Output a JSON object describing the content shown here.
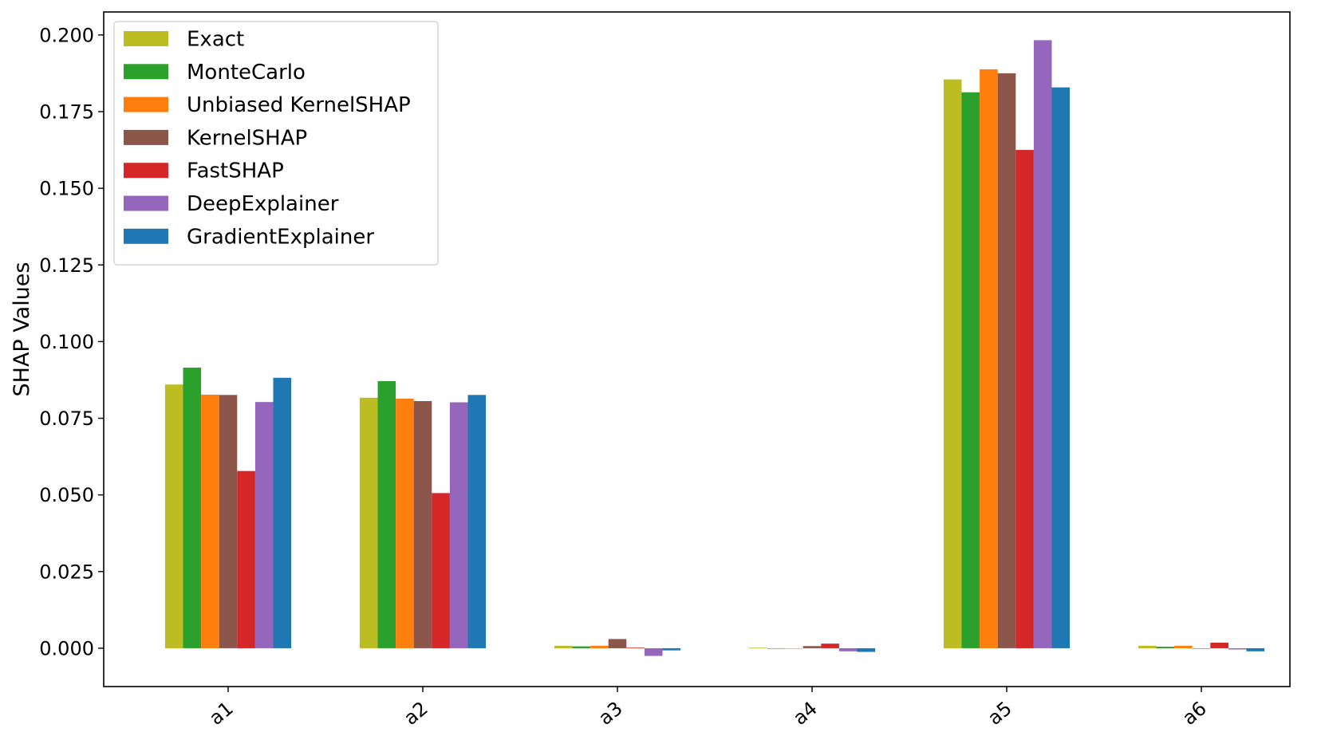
{
  "chart_data": {
    "type": "bar",
    "title": "",
    "xlabel": "",
    "ylabel": "SHAP Values",
    "categories": [
      "a1",
      "a2",
      "a3",
      "a4",
      "a5",
      "a6"
    ],
    "ylim": [
      -0.0125,
      0.2075
    ],
    "yticks": [
      0.0,
      0.025,
      0.05,
      0.075,
      0.1,
      0.125,
      0.15,
      0.175,
      0.2
    ],
    "ytick_labels": [
      "0.000",
      "0.025",
      "0.050",
      "0.075",
      "0.100",
      "0.125",
      "0.150",
      "0.175",
      "0.200"
    ],
    "xtick_rotation": "rotated ~40°",
    "grid": false,
    "legend_position": "upper-left",
    "series": [
      {
        "name": "Exact",
        "color": "#bcbd22",
        "values": [
          0.086,
          0.0817,
          0.0008,
          0.0002,
          0.1855,
          0.0008
        ]
      },
      {
        "name": "MonteCarlo",
        "color": "#2ca02c",
        "values": [
          0.0915,
          0.0871,
          0.0006,
          0.0,
          0.1813,
          0.0005
        ]
      },
      {
        "name": "Unbiased KernelSHAP",
        "color": "#ff7f0e",
        "values": [
          0.0827,
          0.0814,
          0.0008,
          0.0,
          0.1888,
          0.0008
        ]
      },
      {
        "name": "KernelSHAP",
        "color": "#8c564b",
        "values": [
          0.0826,
          0.0806,
          0.003,
          0.0007,
          0.1875,
          0.0
        ]
      },
      {
        "name": "FastSHAP",
        "color": "#d62728",
        "values": [
          0.0578,
          0.0506,
          0.0002,
          0.0015,
          0.1625,
          0.0018
        ]
      },
      {
        "name": "DeepExplainer",
        "color": "#9467bd",
        "values": [
          0.0803,
          0.0802,
          -0.0025,
          -0.001,
          0.1983,
          -0.0004
        ]
      },
      {
        "name": "GradientExplainer",
        "color": "#1f77b4",
        "values": [
          0.0882,
          0.0826,
          -0.0007,
          -0.0012,
          0.1829,
          -0.001
        ]
      }
    ]
  }
}
